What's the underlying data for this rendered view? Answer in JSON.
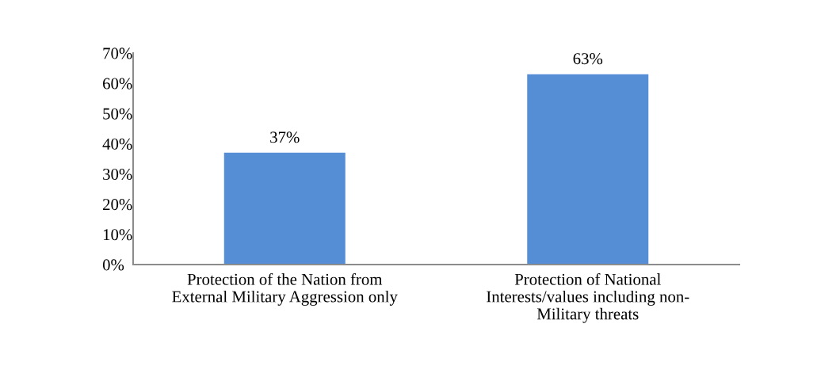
{
  "chart_data": {
    "type": "bar",
    "categories": [
      "Protection of the Nation from\nExternal Military Aggression only",
      "Protection of National\nInterests/values including non-\nMilitary threats"
    ],
    "values": [
      37,
      63
    ],
    "value_labels": [
      "37%",
      "63%"
    ],
    "color": "#558ed5",
    "ylim": [
      0,
      70
    ],
    "yticks": [
      {
        "value": 0,
        "label": "0%"
      },
      {
        "value": 10,
        "label": "10%"
      },
      {
        "value": 20,
        "label": "20%"
      },
      {
        "value": 30,
        "label": "30%"
      },
      {
        "value": 40,
        "label": "40%"
      },
      {
        "value": 50,
        "label": "50%"
      },
      {
        "value": 60,
        "label": "60%"
      },
      {
        "value": 70,
        "label": "70%"
      }
    ],
    "grid": false,
    "legend": false
  }
}
